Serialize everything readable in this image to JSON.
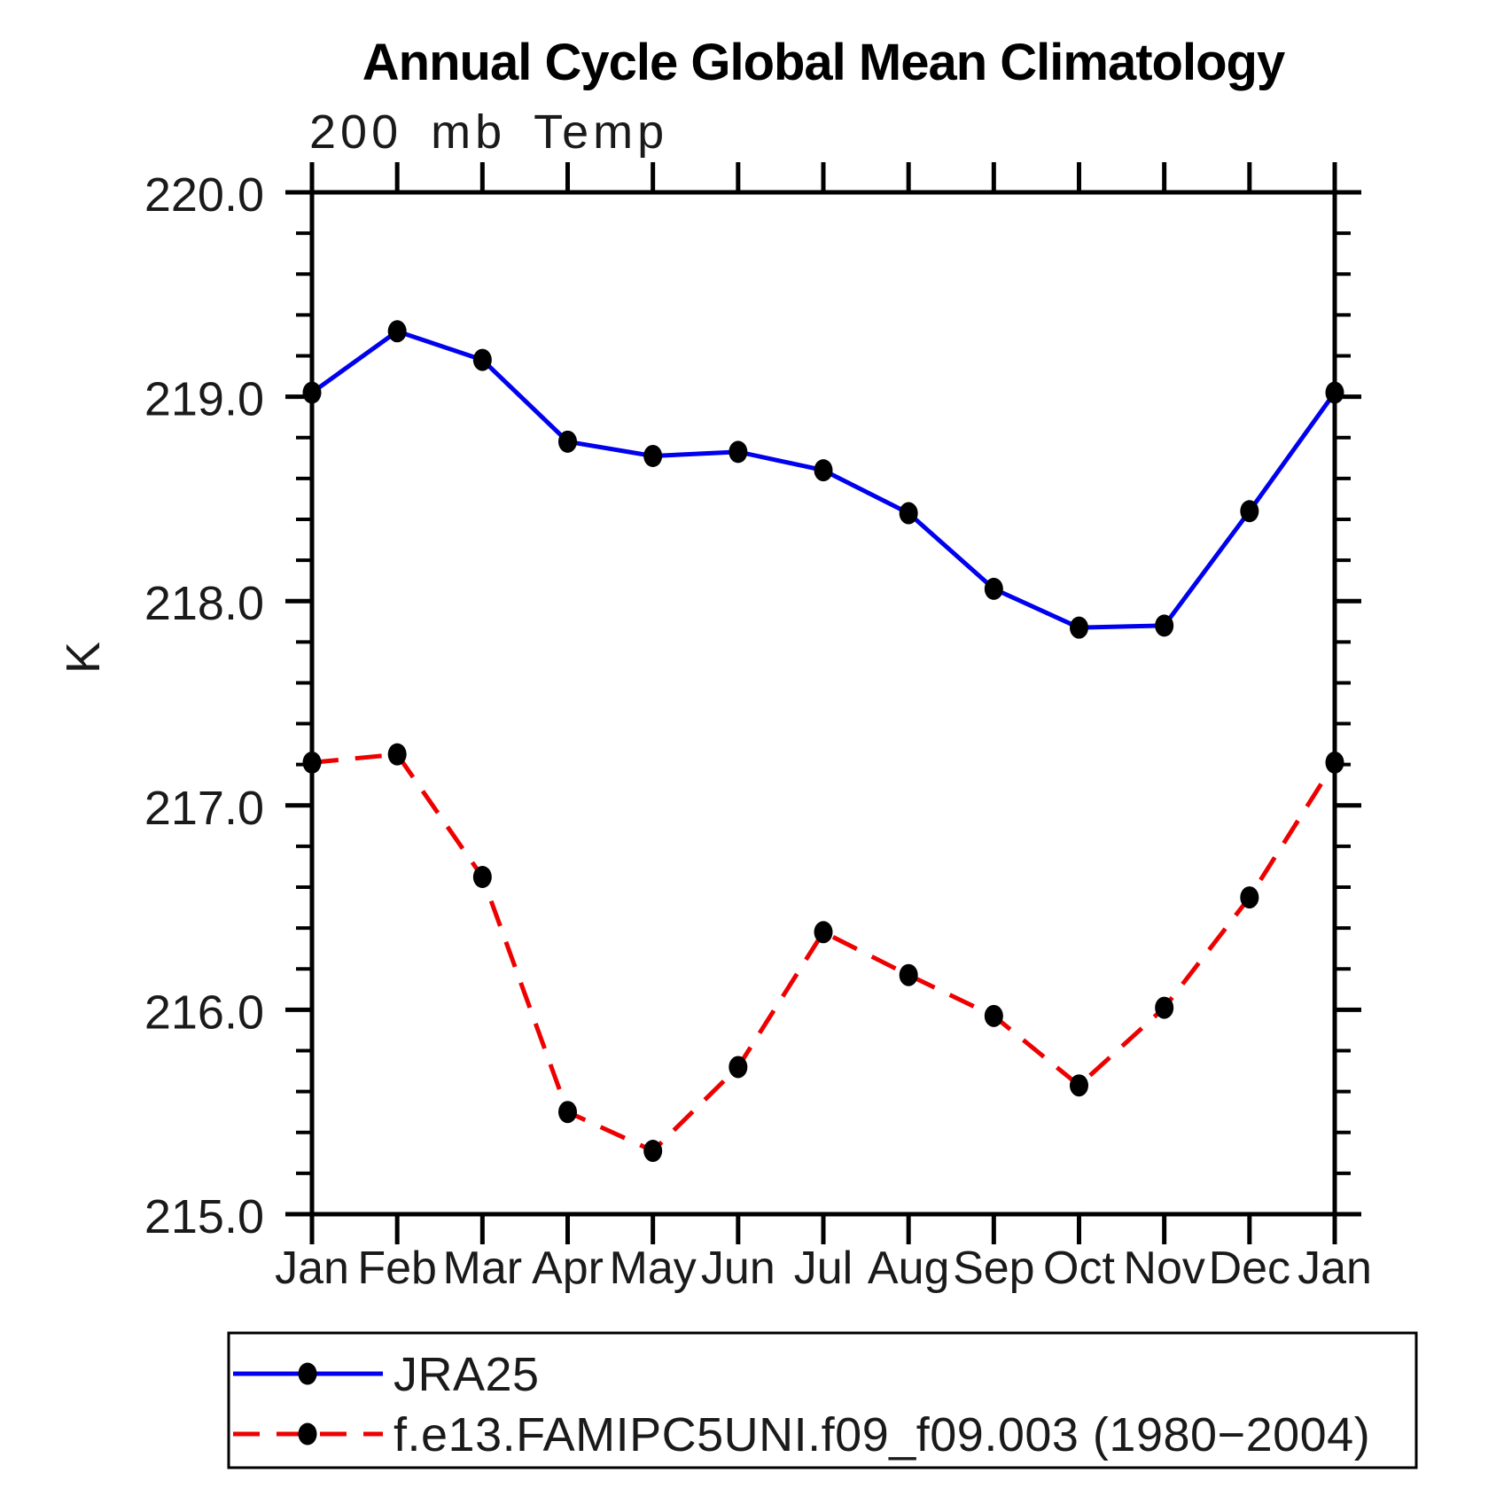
{
  "chart_data": {
    "type": "line",
    "title": "Annual Cycle Global Mean Climatology",
    "subtitle": "200 mb Temp",
    "ylabel": "K",
    "x_categories": [
      "Jan",
      "Feb",
      "Mar",
      "Apr",
      "May",
      "Jun",
      "Jul",
      "Aug",
      "Sep",
      "Oct",
      "Nov",
      "Dec",
      "Jan"
    ],
    "ylim": [
      215.0,
      220.0
    ],
    "y_major_ticks": [
      "220.0",
      "219.0",
      "218.0",
      "217.0",
      "216.0",
      "215.0"
    ],
    "y_minor_step": 0.2,
    "grid": false,
    "axis_color": "#000000",
    "marker_color": "#000000",
    "legend_position": "bottom-left-box",
    "series": [
      {
        "name": "JRA25",
        "color": "#0000ee",
        "line_style": "solid",
        "marker": "filled-circle",
        "values": [
          219.02,
          219.32,
          219.18,
          218.78,
          218.71,
          218.73,
          218.64,
          218.43,
          218.06,
          217.87,
          217.88,
          218.44,
          219.02
        ]
      },
      {
        "name": "f.e13.FAMIPC5UNI.f09_f09.003 (1980−2004)",
        "color": "#ee0000",
        "line_style": "dashed",
        "marker": "filled-circle",
        "values": [
          217.21,
          217.25,
          216.65,
          215.5,
          215.31,
          215.72,
          216.38,
          216.17,
          215.97,
          215.63,
          216.01,
          216.55,
          217.21
        ]
      }
    ]
  }
}
